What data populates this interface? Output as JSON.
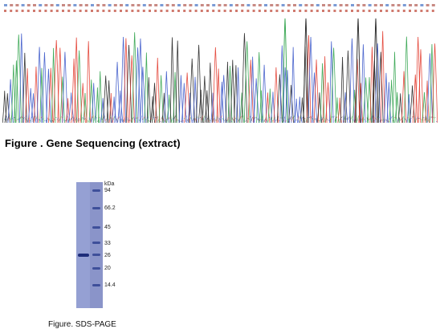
{
  "figure1": {
    "caption": "Figure . Gene Sequencing (extract)",
    "trace_colors": {
      "A": "#2fa24a",
      "C": "#3a57c9",
      "G": "#222222",
      "T": "#e23b2e"
    }
  },
  "figure2": {
    "caption": "Figure. SDS-PAGE",
    "unit_label": "kDa",
    "markers": [
      {
        "label": "94",
        "kda": 94
      },
      {
        "label": "66.2",
        "kda": 66.2
      },
      {
        "label": "45",
        "kda": 45
      },
      {
        "label": "33",
        "kda": 33
      },
      {
        "label": "26",
        "kda": 26
      },
      {
        "label": "20",
        "kda": 20
      },
      {
        "label": "14.4",
        "kda": 14.4
      }
    ],
    "sample_band_kda": 26
  }
}
